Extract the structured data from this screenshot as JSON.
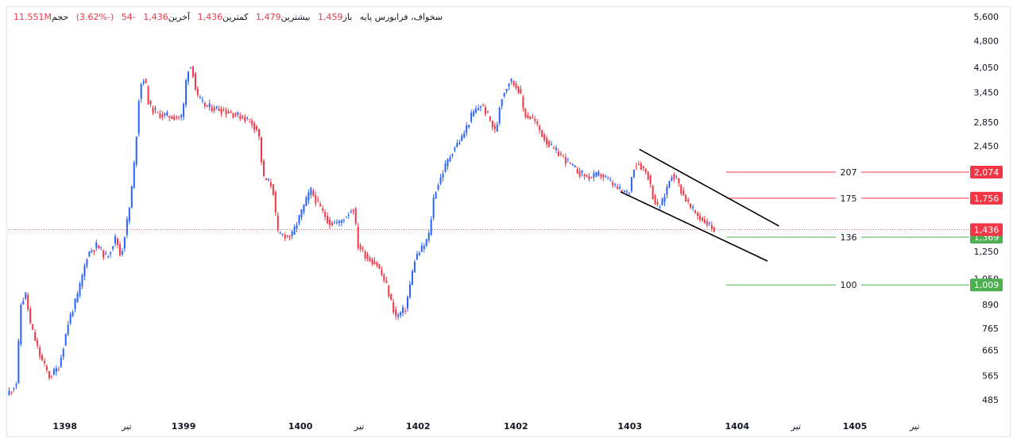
{
  "legend": {
    "symbol": "سخواف، فرابورس پایه",
    "open_label": "باز",
    "open_value": "1,459",
    "high_label": "بیشترین",
    "high_value": "1,479",
    "low_label": "کمترین",
    "low_value": "1,436",
    "close_label": "آخرین",
    "close_value": "1,436",
    "change_value": "-54",
    "change_pct": "(-3.62%)",
    "volume_label": "حجم",
    "volume_value": "11.551M"
  },
  "colors": {
    "up": "#2962ff",
    "down": "#f23645",
    "support": "#4caf50",
    "resistance": "#f23645",
    "channel": "#000000",
    "price_line": "#f23645",
    "text": "#131722"
  },
  "chart_data": {
    "type": "candlestick",
    "y_scale": "log",
    "ylim": [
      440,
      5800
    ],
    "y_ticks": [
      "5,600",
      "4,800",
      "4,050",
      "3,450",
      "2,850",
      "2,450",
      "1,250",
      "1,050",
      "890",
      "765",
      "665",
      "565",
      "485"
    ],
    "x_ticks": [
      {
        "label": "1398",
        "bold": true,
        "t": 0.06
      },
      {
        "label": "تیر",
        "bold": false,
        "t": 0.125
      },
      {
        "label": "1399",
        "bold": true,
        "t": 0.185
      },
      {
        "label": "1400",
        "bold": true,
        "t": 0.308
      },
      {
        "label": "تیر",
        "bold": false,
        "t": 0.37
      },
      {
        "label": "1402",
        "bold": true,
        "t": 0.432
      },
      {
        "label": "1402",
        "bold": true,
        "t": 0.535
      },
      {
        "label": "1403",
        "bold": true,
        "t": 0.655
      },
      {
        "label": "1404",
        "bold": true,
        "t": 0.768
      },
      {
        "label": "تیر",
        "bold": false,
        "t": 0.83
      },
      {
        "label": "1405",
        "bold": true,
        "t": 0.892
      },
      {
        "label": "تیر",
        "bold": false,
        "t": 0.955
      }
    ],
    "price_path": [
      [
        0.0,
        500
      ],
      [
        0.01,
        540
      ],
      [
        0.015,
        900
      ],
      [
        0.02,
        950
      ],
      [
        0.025,
        780
      ],
      [
        0.035,
        640
      ],
      [
        0.045,
        560
      ],
      [
        0.055,
        600
      ],
      [
        0.065,
        800
      ],
      [
        0.075,
        950
      ],
      [
        0.085,
        1230
      ],
      [
        0.095,
        1300
      ],
      [
        0.105,
        1200
      ],
      [
        0.115,
        1370
      ],
      [
        0.12,
        1200
      ],
      [
        0.13,
        1700
      ],
      [
        0.135,
        2300
      ],
      [
        0.14,
        3600
      ],
      [
        0.145,
        3800
      ],
      [
        0.15,
        3150
      ],
      [
        0.16,
        3000
      ],
      [
        0.175,
        2950
      ],
      [
        0.185,
        2950
      ],
      [
        0.19,
        4000
      ],
      [
        0.195,
        4100
      ],
      [
        0.2,
        3350
      ],
      [
        0.21,
        3150
      ],
      [
        0.225,
        3100
      ],
      [
        0.24,
        3000
      ],
      [
        0.255,
        2900
      ],
      [
        0.265,
        2700
      ],
      [
        0.27,
        2000
      ],
      [
        0.28,
        1900
      ],
      [
        0.285,
        1400
      ],
      [
        0.295,
        1380
      ],
      [
        0.3,
        1380
      ],
      [
        0.31,
        1600
      ],
      [
        0.32,
        1850
      ],
      [
        0.33,
        1650
      ],
      [
        0.34,
        1500
      ],
      [
        0.35,
        1500
      ],
      [
        0.36,
        1600
      ],
      [
        0.365,
        1650
      ],
      [
        0.37,
        1300
      ],
      [
        0.38,
        1200
      ],
      [
        0.39,
        1150
      ],
      [
        0.4,
        1000
      ],
      [
        0.405,
        900
      ],
      [
        0.41,
        820
      ],
      [
        0.42,
        870
      ],
      [
        0.43,
        1200
      ],
      [
        0.44,
        1300
      ],
      [
        0.445,
        1400
      ],
      [
        0.45,
        1800
      ],
      [
        0.46,
        2100
      ],
      [
        0.47,
        2400
      ],
      [
        0.48,
        2600
      ],
      [
        0.49,
        3000
      ],
      [
        0.5,
        3200
      ],
      [
        0.51,
        2850
      ],
      [
        0.515,
        2650
      ],
      [
        0.52,
        3300
      ],
      [
        0.53,
        3750
      ],
      [
        0.54,
        3500
      ],
      [
        0.545,
        3000
      ],
      [
        0.555,
        2900
      ],
      [
        0.565,
        2600
      ],
      [
        0.575,
        2400
      ],
      [
        0.585,
        2300
      ],
      [
        0.595,
        2150
      ],
      [
        0.605,
        2050
      ],
      [
        0.615,
        2000
      ],
      [
        0.625,
        2050
      ],
      [
        0.635,
        1950
      ],
      [
        0.645,
        1850
      ],
      [
        0.655,
        1800
      ],
      [
        0.66,
        2150
      ],
      [
        0.665,
        2200
      ],
      [
        0.675,
        2050
      ],
      [
        0.68,
        1800
      ],
      [
        0.685,
        1650
      ],
      [
        0.69,
        1700
      ],
      [
        0.7,
        2050
      ],
      [
        0.705,
        2000
      ],
      [
        0.71,
        1850
      ],
      [
        0.72,
        1650
      ],
      [
        0.73,
        1550
      ],
      [
        0.74,
        1480
      ],
      [
        0.745,
        1436
      ]
    ],
    "channel": {
      "upper": [
        [
          0.665,
          2400
        ],
        [
          0.812,
          1470
        ]
      ],
      "lower": [
        [
          0.645,
          1830
        ],
        [
          0.8,
          1175
        ]
      ]
    },
    "levels": [
      {
        "label": "207",
        "badge": "2,074",
        "value": 2074,
        "kind": "resistance"
      },
      {
        "label": "175",
        "badge": "1,756",
        "value": 1756,
        "kind": "resistance"
      },
      {
        "label": "136",
        "badge": "1,369",
        "value": 1369,
        "kind": "support"
      },
      {
        "label": "100",
        "badge": "1,009",
        "value": 1009,
        "kind": "support"
      }
    ],
    "last_price": {
      "value": 1436,
      "badge": "1,436"
    }
  }
}
